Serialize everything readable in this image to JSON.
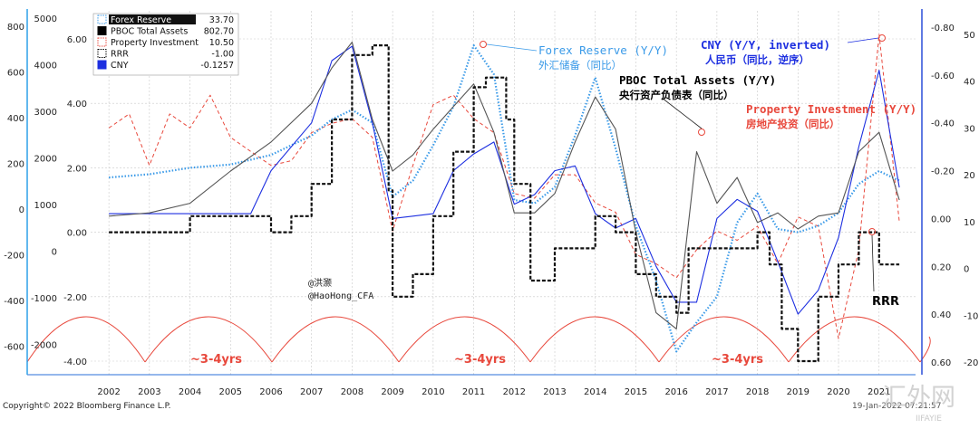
{
  "chart_data": {
    "type": "line",
    "x_ticks": [
      "2002",
      "2003",
      "2004",
      "2005",
      "2006",
      "2007",
      "2008",
      "2009",
      "2010",
      "2011",
      "2012",
      "2013",
      "2014",
      "2015",
      "2016",
      "2017",
      "2018",
      "2019",
      "2020",
      "2021"
    ],
    "axis1_ticks": [
      "800",
      "600",
      "400",
      "200",
      "0",
      "-200",
      "-400",
      "-600"
    ],
    "axis2_ticks": [
      "5000",
      "4000",
      "3000",
      "2000",
      "1000",
      "0",
      "-1000",
      "-2000"
    ],
    "axis3_ticks": [
      "6.00",
      "4.00",
      "2.00",
      "0.00",
      "-2.00",
      "-4.00"
    ],
    "axis4_ticks": [
      "-0.80",
      "-0.60",
      "-0.40",
      "-0.20",
      "0.00",
      "0.20",
      "0.40",
      "0.60"
    ],
    "axis5_ticks": [
      "50",
      "40",
      "30",
      "20",
      "10",
      "0",
      "-10",
      "-20"
    ],
    "legend": [
      {
        "label": "Forex Reserve",
        "value": "33.70",
        "color": "#3a9ae8"
      },
      {
        "label": "PBOC Total Assets",
        "value": "802.70",
        "color": "#000000"
      },
      {
        "label": "Property Investment",
        "value": "10.50",
        "color": "#e8483c"
      },
      {
        "label": "RRR",
        "value": "-1.00",
        "color": "#000000"
      },
      {
        "label": "CNY",
        "value": "-0.1257",
        "color": "#1d2fe0"
      }
    ],
    "series": [
      {
        "name": "Forex Reserve",
        "color": "#3a9ae8",
        "x": [
          2002.0,
          2003.0,
          2004.0,
          2005.0,
          2006.0,
          2007.0,
          2007.5,
          2008.0,
          2008.5,
          2009.0,
          2009.5,
          2010.0,
          2010.5,
          2011.0,
          2011.5,
          2012.0,
          2012.5,
          2013.0,
          2013.5,
          2014.0,
          2014.5,
          2015.0,
          2015.5,
          2016.0,
          2016.5,
          2017.0,
          2017.5,
          2018.0,
          2018.5,
          2019.0,
          2019.5,
          2020.0,
          2020.5,
          2021.0,
          2021.5
        ],
        "y": [
          1.7,
          1.8,
          2.0,
          2.1,
          2.4,
          3.0,
          3.5,
          3.8,
          3.4,
          1.1,
          1.6,
          2.7,
          3.9,
          5.8,
          4.9,
          1.0,
          0.9,
          1.4,
          3.0,
          4.8,
          2.6,
          0.2,
          -1.5,
          -3.7,
          -2.8,
          -2.0,
          0.3,
          1.2,
          0.1,
          0.0,
          0.2,
          0.6,
          1.5,
          1.9,
          1.6
        ]
      },
      {
        "name": "PBOC Total Assets",
        "color": "#555555",
        "x": [
          2002.0,
          2003.0,
          2004.0,
          2005.0,
          2006.0,
          2007.0,
          2007.5,
          2008.0,
          2008.5,
          2009.0,
          2009.5,
          2010.0,
          2010.5,
          2011.0,
          2011.5,
          2012.0,
          2012.5,
          2013.0,
          2013.5,
          2014.0,
          2014.5,
          2015.0,
          2015.5,
          2016.0,
          2016.5,
          2017.0,
          2017.5,
          2018.0,
          2018.5,
          2019.0,
          2019.5,
          2020.0,
          2020.5,
          2021.0,
          2021.5
        ],
        "y": [
          0.5,
          0.6,
          0.9,
          1.9,
          2.8,
          4.0,
          5.1,
          5.9,
          3.5,
          1.9,
          2.4,
          3.2,
          3.9,
          4.6,
          3.1,
          0.6,
          0.6,
          1.2,
          2.8,
          4.2,
          3.2,
          0.0,
          -2.5,
          -3.0,
          2.5,
          0.9,
          1.7,
          0.3,
          0.6,
          0.1,
          0.5,
          0.6,
          2.5,
          3.1,
          1.0
        ]
      },
      {
        "name": "Property Investment",
        "color": "#e8483c",
        "x": [
          2002.0,
          2002.5,
          2003.0,
          2003.5,
          2004.0,
          2004.5,
          2005.0,
          2005.5,
          2006.0,
          2006.5,
          2007.0,
          2007.5,
          2008.0,
          2008.5,
          2009.0,
          2009.5,
          2010.0,
          2010.5,
          2011.0,
          2011.5,
          2012.0,
          2012.5,
          2013.0,
          2013.5,
          2014.0,
          2014.5,
          2015.0,
          2015.5,
          2016.0,
          2016.5,
          2017.0,
          2017.5,
          2018.0,
          2018.5,
          2019.0,
          2019.5,
          2020.0,
          2020.5,
          2021.0,
          2021.5
        ],
        "y": [
          30,
          33,
          22,
          33,
          30,
          37,
          28,
          25,
          22,
          23,
          29,
          31,
          32,
          28,
          8,
          22,
          35,
          37,
          32,
          29,
          16,
          15,
          20,
          20,
          14,
          12,
          3,
          1,
          -2,
          4,
          8,
          6,
          9,
          1,
          11,
          9,
          -15,
          4,
          50,
          10
        ]
      },
      {
        "name": "CNY",
        "color": "#1d2fe0",
        "x": [
          2002.0,
          2004.0,
          2005.5,
          2006.0,
          2007.0,
          2007.5,
          2008.0,
          2008.5,
          2009.0,
          2009.5,
          2010.0,
          2010.5,
          2011.0,
          2011.5,
          2012.0,
          2012.5,
          2013.0,
          2013.5,
          2014.0,
          2014.5,
          2015.0,
          2015.5,
          2016.0,
          2016.5,
          2017.0,
          2017.5,
          2018.0,
          2018.5,
          2019.0,
          2019.5,
          2020.0,
          2020.5,
          2021.0,
          2021.5
        ],
        "y": [
          -0.02,
          -0.02,
          -0.02,
          -0.2,
          -0.4,
          -0.66,
          -0.72,
          -0.4,
          0.0,
          -0.01,
          -0.02,
          -0.2,
          -0.27,
          -0.32,
          -0.06,
          -0.1,
          -0.2,
          -0.22,
          -0.02,
          0.04,
          0.0,
          0.2,
          0.35,
          0.35,
          0.0,
          -0.08,
          -0.03,
          0.18,
          0.4,
          0.3,
          0.08,
          -0.3,
          -0.62,
          -0.13
        ]
      },
      {
        "name": "RRR",
        "color": "#111111",
        "x": [
          2002.0,
          2003.5,
          2004.0,
          2004.5,
          2006.0,
          2006.5,
          2007.0,
          2007.5,
          2008.0,
          2008.5,
          2008.9,
          2009.0,
          2009.5,
          2010.0,
          2010.5,
          2011.0,
          2011.3,
          2011.8,
          2012.0,
          2012.4,
          2012.8,
          2013.0,
          2014.0,
          2014.5,
          2015.0,
          2015.5,
          2016.0,
          2016.3,
          2017.0,
          2018.0,
          2018.3,
          2018.6,
          2019.0,
          2019.5,
          2020.0,
          2020.5,
          2021.0,
          2021.5
        ],
        "y": [
          0.0,
          0.0,
          0.5,
          0.5,
          0.0,
          0.5,
          1.5,
          3.5,
          5.5,
          5.8,
          1.3,
          -2.0,
          -1.3,
          0.5,
          2.5,
          4.5,
          4.8,
          3.5,
          1.5,
          -1.5,
          -1.5,
          -0.5,
          0.5,
          0.0,
          -1.3,
          -2.0,
          -2.5,
          -0.5,
          -0.5,
          0.0,
          -1.0,
          -3.0,
          -4.0,
          -2.0,
          -1.0,
          0.0,
          -1.0,
          -1.0
        ]
      }
    ],
    "annotations": [
      {
        "en": "Forex Reserve (Y/Y)",
        "zh": "外汇储备（同比）",
        "color": "#3a9ae8"
      },
      {
        "en": "CNY (Y/Y, inverted)",
        "zh": "人民币（同比，逆序）",
        "color": "#1d2fe0"
      },
      {
        "en": "PBOC Total Assets (Y/Y)",
        "zh": "央行资产负债表（同比）",
        "color": "#000000"
      },
      {
        "en": "Property Investment (Y/Y)",
        "zh": "房地产投资（同比）",
        "color": "#e8483c"
      },
      {
        "en": "RRR",
        "zh": "",
        "color": "#000000"
      }
    ],
    "cycle_labels": [
      "~3-4yrs",
      "~3-4yrs",
      "~3-4yrs"
    ],
    "watermark_handle": "@洪灏",
    "watermark_handle2": "@HaoHong_CFA",
    "grid": true
  },
  "footer": {
    "copyright": "Copyright© 2022 Bloomberg Finance L.P.",
    "timestamp": "19-Jan-2022 07:21:57"
  },
  "logo": {
    "text": "汇外网",
    "subtext": "IIFAYIE"
  }
}
